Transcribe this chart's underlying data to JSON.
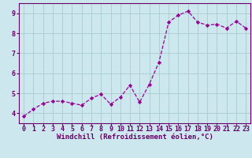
{
  "x": [
    0,
    1,
    2,
    3,
    4,
    5,
    6,
    7,
    8,
    9,
    10,
    11,
    12,
    13,
    14,
    15,
    16,
    17,
    18,
    19,
    20,
    21,
    22,
    23
  ],
  "y": [
    3.85,
    4.2,
    4.5,
    4.6,
    4.6,
    4.5,
    4.4,
    4.75,
    4.95,
    4.45,
    4.8,
    5.4,
    4.55,
    5.45,
    6.55,
    8.55,
    8.9,
    9.1,
    8.55,
    8.4,
    8.45,
    8.25,
    8.6,
    8.25
  ],
  "line_color": "#990099",
  "marker": "D",
  "marker_size": 2.2,
  "bg_color": "#cce8ee",
  "grid_color": "#aacccc",
  "xlabel": "Windchill (Refroidissement éolien,°C)",
  "xlabel_color": "#660066",
  "xlabel_fontsize": 6.5,
  "tick_color": "#660066",
  "tick_fontsize": 6.0,
  "ylim": [
    3.5,
    9.5
  ],
  "xlim": [
    -0.5,
    23.5
  ],
  "yticks": [
    4,
    5,
    6,
    7,
    8,
    9
  ],
  "xticks": [
    0,
    1,
    2,
    3,
    4,
    5,
    6,
    7,
    8,
    9,
    10,
    11,
    12,
    13,
    14,
    15,
    16,
    17,
    18,
    19,
    20,
    21,
    22,
    23
  ],
  "spine_color": "#660066",
  "linewidth": 0.9
}
